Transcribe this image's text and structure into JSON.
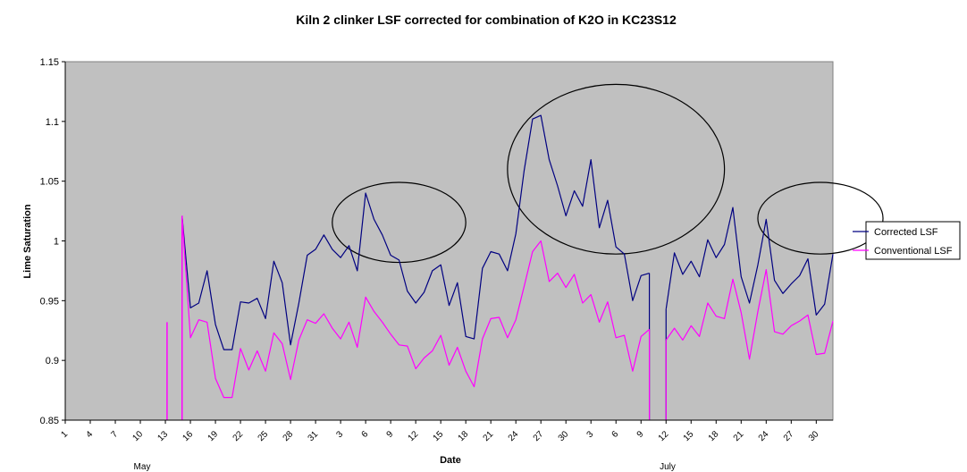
{
  "chart_data": {
    "type": "line",
    "title": "Kiln 2 clinker LSF corrected for combination of K2O in KC23S12",
    "xlabel": "Date",
    "ylabel": "Lime Saturation",
    "ylim": [
      0.85,
      1.15
    ],
    "yticks": [
      "0.85",
      "0.9",
      "0.95",
      "1",
      "1.05",
      "1.1",
      "1.15"
    ],
    "grid": false,
    "legend_position": "right",
    "plot_background": "#c0c0c0",
    "x_ticks": [
      "1",
      "4",
      "7",
      "10",
      "13",
      "16",
      "19",
      "22",
      "25",
      "28",
      "31",
      "3",
      "6",
      "9",
      "12",
      "15",
      "18",
      "21",
      "24",
      "27",
      "30",
      "3",
      "6",
      "9",
      "12",
      "15",
      "18",
      "21",
      "24",
      "27",
      "30"
    ],
    "months": [
      "May",
      "July"
    ],
    "series": [
      {
        "name": "Corrected LSF",
        "color": "#000080",
        "values": [
          null,
          null,
          null,
          null,
          null,
          null,
          null,
          null,
          null,
          null,
          null,
          null,
          null,
          null,
          1.021,
          0.944,
          0.948,
          0.975,
          0.93,
          0.909,
          0.909,
          0.949,
          0.948,
          0.952,
          0.935,
          0.983,
          0.965,
          0.913,
          0.948,
          0.988,
          0.993,
          1.005,
          0.993,
          0.986,
          0.996,
          0.975,
          1.04,
          1.018,
          1.005,
          0.988,
          0.984,
          0.958,
          0.948,
          0.957,
          0.975,
          0.98,
          0.946,
          0.965,
          0.92,
          0.918,
          0.977,
          0.991,
          0.989,
          0.975,
          1.006,
          1.059,
          1.102,
          1.105,
          1.068,
          1.046,
          1.021,
          1.042,
          1.029,
          1.068,
          1.011,
          1.034,
          0.995,
          0.989,
          0.95,
          0.971,
          0.973,
          null,
          0.943,
          0.99,
          0.972,
          0.983,
          0.97,
          1.001,
          0.986,
          0.997,
          1.028,
          0.97,
          0.948,
          0.98,
          1.018,
          0.967,
          0.956,
          0.964,
          0.971,
          0.985,
          0.938,
          0.947,
          0.989
        ]
      },
      {
        "name": "Conventional LSF",
        "color": "#ff00ff",
        "values": [
          null,
          null,
          null,
          null,
          null,
          null,
          null,
          null,
          null,
          null,
          null,
          null,
          null,
          null,
          1.021,
          0.919,
          0.934,
          0.932,
          0.885,
          0.869,
          0.869,
          0.91,
          0.892,
          0.908,
          0.891,
          0.923,
          0.914,
          0.884,
          0.917,
          0.934,
          0.931,
          0.939,
          0.927,
          0.918,
          0.932,
          0.911,
          0.953,
          0.941,
          0.932,
          0.922,
          0.913,
          0.912,
          0.893,
          0.902,
          0.908,
          0.921,
          0.896,
          0.911,
          0.891,
          0.878,
          0.918,
          0.935,
          0.936,
          0.919,
          0.934,
          0.962,
          0.991,
          1.0,
          0.966,
          0.973,
          0.961,
          0.972,
          0.948,
          0.955,
          0.932,
          0.949,
          0.919,
          0.921,
          0.891,
          0.92,
          0.926,
          null,
          0.917,
          0.927,
          0.917,
          0.929,
          0.92,
          0.948,
          0.937,
          0.935,
          0.968,
          0.94,
          0.901,
          0.941,
          0.976,
          0.924,
          0.922,
          0.929,
          0.933,
          0.938,
          0.905,
          0.906,
          0.933
        ]
      }
    ],
    "annotations": [
      {
        "type": "ellipse",
        "label": "",
        "x_index_range": [
          32,
          48
        ],
        "y_range": [
          0.982,
          1.049
        ]
      },
      {
        "type": "ellipse",
        "label": "",
        "x_index_range": [
          53,
          79
        ],
        "y_range": [
          0.989,
          1.131
        ]
      },
      {
        "type": "ellipse",
        "label": "",
        "x_index_range": [
          83,
          98
        ],
        "y_range": [
          0.989,
          1.049
        ]
      }
    ]
  }
}
